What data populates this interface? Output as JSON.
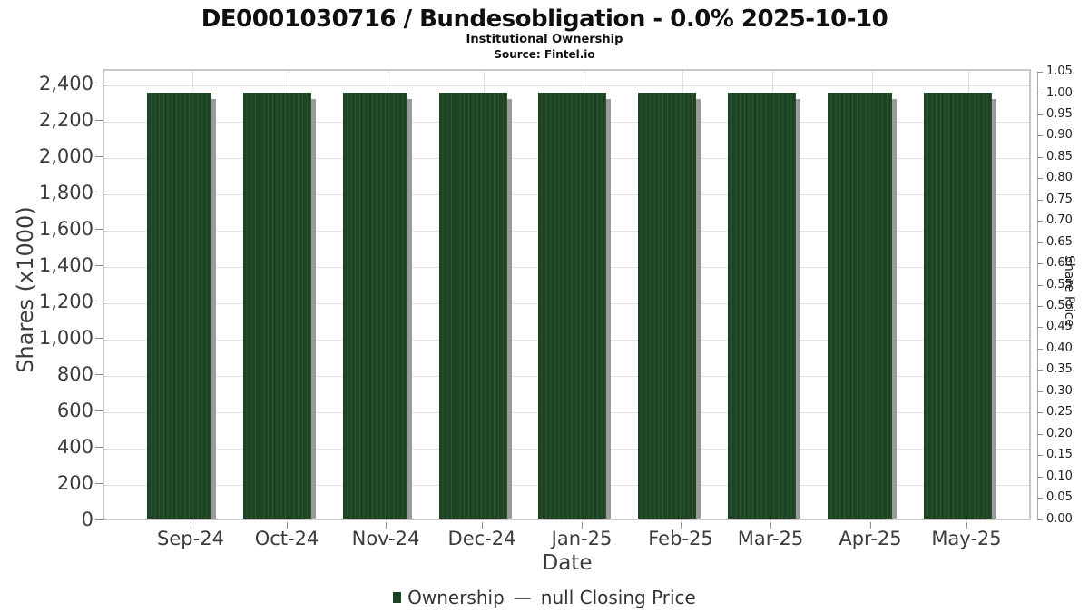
{
  "header": {
    "title": "DE0001030716 / Bundesobligation - 0.0% 2025-10-10",
    "subtitle": "Institutional Ownership",
    "source": "Source: Fintel.io"
  },
  "chart_data": {
    "type": "bar",
    "title": "DE0001030716 / Bundesobligation - 0.0% 2025-10-10",
    "subtitle": "Institutional Ownership",
    "source": "Source: Fintel.io",
    "categories": [
      "Sep-24",
      "Oct-24",
      "Nov-24",
      "Dec-24",
      "Jan-25",
      "Feb-25",
      "Mar-25",
      "Apr-25",
      "May-25"
    ],
    "series": [
      {
        "name": "Ownership",
        "type": "bar",
        "color": "#1d4422",
        "values": [
          2360,
          2360,
          2360,
          2360,
          2360,
          2360,
          2360,
          2360,
          2360
        ]
      },
      {
        "name": "null Closing Price",
        "type": "line",
        "color": "#5a5a5a",
        "values": []
      }
    ],
    "xlabel": "Date",
    "left_axis": {
      "label": "Shares (x1000)",
      "min": 0,
      "max": 2400,
      "step": 200,
      "tick_labels": [
        "0",
        "200",
        "400",
        "600",
        "800",
        "1,000",
        "1,200",
        "1,400",
        "1,600",
        "1,800",
        "2,000",
        "2,200",
        "2,400"
      ]
    },
    "right_axis": {
      "label": "Share Price",
      "min": 0.0,
      "max": 1.05,
      "step": 0.05,
      "tick_labels": [
        "0.00",
        "0.05",
        "0.10",
        "0.15",
        "0.20",
        "0.25",
        "0.30",
        "0.35",
        "0.40",
        "0.45",
        "0.50",
        "0.55",
        "0.60",
        "0.65",
        "0.70",
        "0.75",
        "0.80",
        "0.85",
        "0.90",
        "0.95",
        "1.00",
        "1.05"
      ]
    },
    "grid": true,
    "legend_position": "bottom"
  },
  "legend": {
    "ownership_label": "Ownership",
    "dash": "—",
    "price_label": "null Closing Price"
  },
  "colors": {
    "bar": "#1d4422",
    "bar_stripe": "#2d5433",
    "bar_shadow": "#9b9b9b",
    "grid": "#e2e2e2",
    "plot_border": "#c9c9c9",
    "tick": "#8a8a8a",
    "text": "#3c3c3c"
  }
}
